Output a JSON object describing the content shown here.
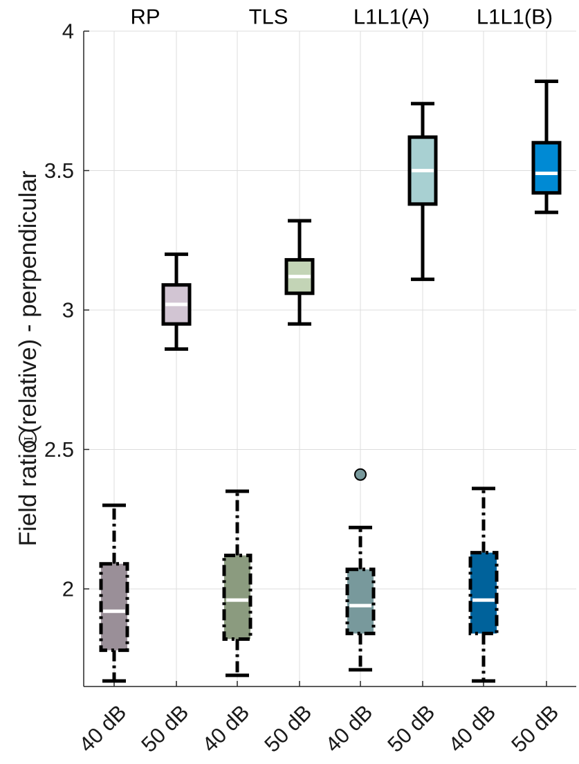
{
  "chart_data": {
    "type": "box",
    "ylabel": "Field ratio",
    "ylabel_symbol": "I",
    "ylabel_suffix": "(relative) - perpendicular",
    "ylim": [
      1.65,
      4.0
    ],
    "yticks": [
      2,
      2.5,
      3,
      3.5,
      4
    ],
    "ytick_labels": [
      "2",
      "2.5",
      "3",
      "3.5",
      "4"
    ],
    "grid": true,
    "groups": [
      "RP",
      "TLS",
      "L1L1(A)",
      "L1L1(B)"
    ],
    "categories": [
      "40 dB",
      "50 dB",
      "40 dB",
      "50 dB",
      "40 dB",
      "50 dB",
      "40 dB",
      "50 dB"
    ],
    "boxes": [
      {
        "group": "RP",
        "level": "40 dB",
        "whisker_low": 1.67,
        "q1": 1.78,
        "median": 1.92,
        "q3": 2.09,
        "whisker_high": 2.3,
        "outliers": [],
        "fill": "#9a8f98",
        "line_style": "dashdot"
      },
      {
        "group": "RP",
        "level": "50 dB",
        "whisker_low": 2.86,
        "q1": 2.95,
        "median": 3.02,
        "q3": 3.09,
        "whisker_high": 3.2,
        "outliers": [],
        "fill": "#d2c5d3",
        "line_style": "solid"
      },
      {
        "group": "TLS",
        "level": "40 dB",
        "whisker_low": 1.69,
        "q1": 1.82,
        "median": 1.96,
        "q3": 2.12,
        "whisker_high": 2.35,
        "outliers": [],
        "fill": "#8b9b7f",
        "line_style": "dashdot"
      },
      {
        "group": "TLS",
        "level": "50 dB",
        "whisker_low": 2.95,
        "q1": 3.06,
        "median": 3.12,
        "q3": 3.18,
        "whisker_high": 3.32,
        "outliers": [],
        "fill": "#c3d4b6",
        "line_style": "solid"
      },
      {
        "group": "L1L1(A)",
        "level": "40 dB",
        "whisker_low": 1.71,
        "q1": 1.84,
        "median": 1.94,
        "q3": 2.07,
        "whisker_high": 2.22,
        "outliers": [
          2.41
        ],
        "fill": "#78999c",
        "line_style": "dashdot"
      },
      {
        "group": "L1L1(A)",
        "level": "50 dB",
        "whisker_low": 3.11,
        "q1": 3.38,
        "median": 3.5,
        "q3": 3.62,
        "whisker_high": 3.74,
        "outliers": [],
        "fill": "#a8d0d2",
        "line_style": "solid"
      },
      {
        "group": "L1L1(B)",
        "level": "40 dB",
        "whisker_low": 1.67,
        "q1": 1.84,
        "median": 1.96,
        "q3": 2.13,
        "whisker_high": 2.36,
        "outliers": [],
        "fill": "#00629b",
        "line_style": "dashdot"
      },
      {
        "group": "L1L1(B)",
        "level": "50 dB",
        "whisker_low": 3.35,
        "q1": 3.42,
        "median": 3.49,
        "q3": 3.6,
        "whisker_high": 3.82,
        "outliers": [],
        "fill": "#008ad4",
        "line_style": "solid"
      }
    ]
  }
}
